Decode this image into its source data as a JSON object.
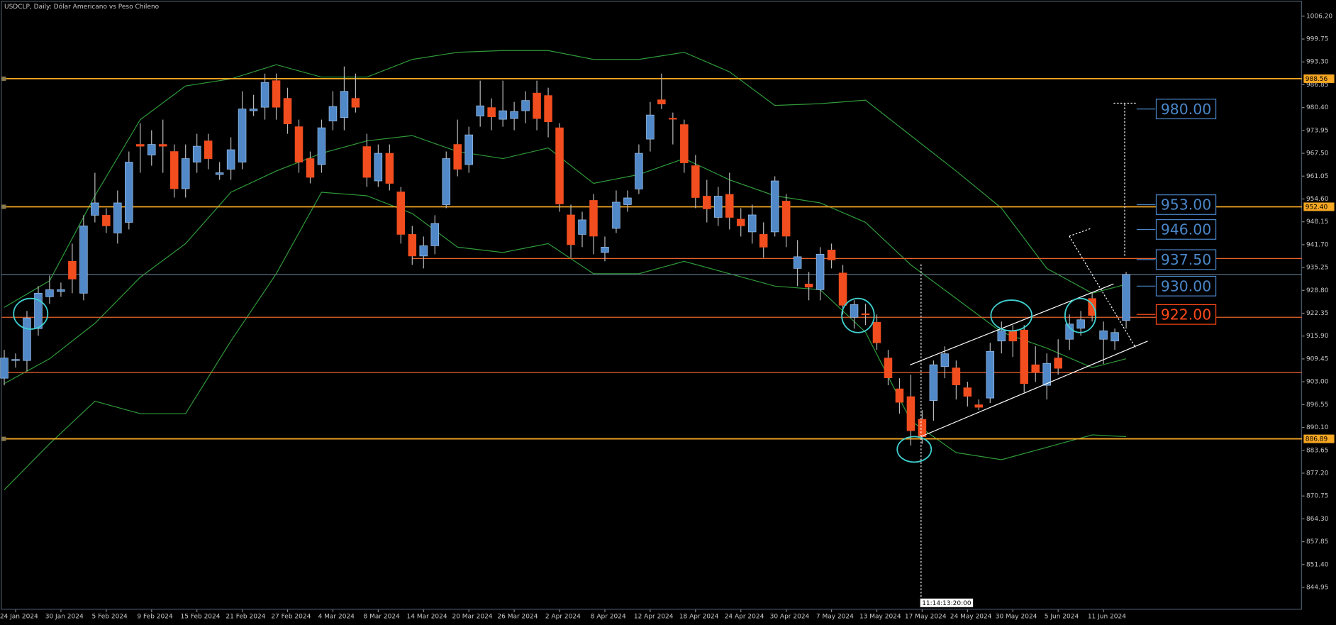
{
  "chart_data": {
    "type": "candlestick",
    "title": "USDCLP, Daily:  Dólar Americano vs Peso Chileno",
    "categories": [
      null,
      "24 Jan 2024",
      null,
      null,
      null,
      "30 Jan 2024",
      null,
      null,
      null,
      "5 Feb 2024",
      null,
      null,
      null,
      "9 Feb 2024",
      null,
      null,
      null,
      "15 Feb 2024",
      null,
      null,
      null,
      "21 Feb 2024",
      null,
      null,
      null,
      "27 Feb 2024",
      null,
      null,
      null,
      "4 Mar 2024",
      null,
      null,
      null,
      "8 Mar 2024",
      null,
      null,
      null,
      "14 Mar 2024",
      null,
      null,
      null,
      "20 Mar 2024",
      null,
      null,
      null,
      "26 Mar 2024",
      null,
      null,
      null,
      "2 Apr 2024",
      null,
      null,
      null,
      "8 Apr 2024",
      null,
      null,
      null,
      "12 Apr 2024",
      null,
      null,
      null,
      "18 Apr 2024",
      null,
      null,
      null,
      "24 Apr 2024",
      null,
      null,
      null,
      "30 Apr 2024",
      null,
      null,
      null,
      "7 May 2024",
      null,
      null,
      null,
      "13 May 2024",
      null,
      null,
      null,
      "17 May 2024",
      null,
      null,
      null,
      "24 May 2024",
      null,
      null,
      null,
      "30 May 2024",
      null,
      null,
      null,
      "5 Jun 2024",
      null,
      null,
      null,
      "11 Jun 2024",
      null,
      null
    ],
    "open": [
      904,
      909,
      909,
      918,
      927,
      928.5,
      937,
      928,
      950,
      950,
      945,
      948,
      970,
      967,
      970,
      968,
      957.5,
      965,
      971,
      961.5,
      963,
      965,
      979.5,
      980.5,
      988,
      983,
      975,
      966,
      964.3,
      976.6,
      977.6,
      983,
      969.4,
      959.7,
      967.5,
      956.6,
      944.6,
      938.5,
      941.4,
      953,
      970,
      964.3,
      978,
      980.4,
      977.1,
      977.3,
      979.5,
      984.5,
      983.8,
      974.7,
      950.1,
      944.6,
      954.2,
      939.5,
      946.3,
      953,
      957.4,
      971.5,
      982.6,
      977.4,
      975.6,
      964,
      955.4,
      949.4,
      955.9,
      948.9,
      945.3,
      944.6,
      945.3,
      954,
      935,
      930.6,
      929,
      940.2,
      933.7,
      921.2,
      922.2,
      919.8,
      909.7,
      901,
      898.8,
      892.4,
      897.7,
      907.3,
      906.9,
      901.3,
      896.5,
      898.4,
      914.5,
      917.4,
      917.6,
      907.8,
      902,
      909.7,
      915,
      918.1,
      926.5,
      915,
      914.5,
      920.3
    ],
    "high": [
      912,
      911,
      923,
      930,
      933,
      931,
      942,
      950,
      962,
      952,
      957,
      968,
      976,
      974,
      977,
      970,
      970,
      973,
      973,
      965,
      972,
      985,
      984,
      990,
      990,
      986,
      977,
      968,
      977,
      985,
      992,
      990,
      973,
      970,
      970,
      958,
      947,
      944,
      950,
      968,
      977,
      975,
      988,
      983,
      988,
      982,
      985,
      988,
      986,
      976,
      953,
      951,
      956,
      944,
      957,
      957,
      970,
      982,
      990,
      979,
      977,
      967,
      960,
      958,
      962,
      952,
      953,
      948,
      961,
      956,
      943,
      934,
      941,
      942,
      936,
      926,
      925,
      922,
      912,
      904,
      905,
      895,
      909,
      913,
      909,
      903,
      898,
      914,
      920,
      919,
      919,
      913,
      911,
      915,
      922,
      923,
      928,
      920,
      918,
      934
    ],
    "low": [
      902,
      907,
      906,
      916,
      925,
      927,
      928,
      926,
      948,
      945,
      942,
      946,
      962,
      964,
      962,
      955,
      955,
      962,
      963,
      960,
      960,
      963,
      978,
      977,
      977,
      973,
      962,
      959,
      962,
      974,
      974,
      979,
      958,
      958,
      957,
      942,
      936,
      935,
      939,
      952,
      961,
      962,
      975,
      974,
      975,
      974,
      976,
      974,
      972,
      951,
      938,
      941,
      939,
      937,
      945,
      951,
      956,
      968,
      980,
      970,
      962,
      952,
      948,
      947,
      946,
      944,
      942,
      938,
      944,
      941,
      930,
      926,
      926,
      935,
      922,
      918,
      919,
      912,
      902,
      894,
      885,
      885.5,
      892,
      904,
      898,
      896,
      895,
      897,
      911,
      910,
      900,
      903,
      898,
      905,
      912,
      916,
      920,
      908,
      912,
      918
    ],
    "close": [
      909.7,
      909.3,
      921,
      928,
      929,
      929,
      932,
      947,
      953.5,
      947,
      953.5,
      965,
      969.5,
      970,
      969.5,
      957.5,
      966,
      969.5,
      966,
      962,
      968.5,
      980,
      980,
      987.5,
      980.5,
      975.8,
      965,
      960.7,
      974.7,
      980.7,
      985,
      980.5,
      960.7,
      967.5,
      959,
      944.6,
      938.5,
      941.4,
      947.7,
      966,
      963,
      972.7,
      980.9,
      977.8,
      979.5,
      979.3,
      982.4,
      977.3,
      976.4,
      953.2,
      941.7,
      948.7,
      944.1,
      941,
      953.7,
      954.9,
      967.5,
      978.3,
      981.4,
      977.2,
      964.8,
      955,
      951.8,
      955.4,
      949.4,
      947,
      950.1,
      941,
      959.7,
      944.1,
      938.3,
      929.7,
      939,
      937.4,
      924.6,
      924.8,
      922,
      914,
      904.1,
      897.2,
      889.2,
      887.5,
      907.8,
      910.9,
      902.1,
      898.9,
      895.8,
      911.6,
      917.4,
      914.5,
      902.5,
      905.6,
      908.2,
      906.8,
      919.3,
      920.5,
      921.7,
      917.4,
      916.9,
      933.3
    ],
    "colors": {
      "up": "#5088c8",
      "down": "#f24d1e",
      "wick": "#b8b8b8",
      "band": "#2f9a3a",
      "level": "#f5a623",
      "line": "#e8622c",
      "price_line": "#5a6e80"
    },
    "ylim": [
      838.67,
      1010.77
    ],
    "yticks": [
      {
        "value": 1006.2,
        "label": "1006.20"
      },
      999.75,
      {
        "value": 993.3,
        "label": "993.30"
      },
      986.85,
      {
        "value": 980.4,
        "label": "980.40"
      },
      973.95,
      {
        "value": 967.5,
        "label": "967.50"
      },
      961.05,
      {
        "value": 954.6,
        "label": "954.60"
      },
      948.15,
      {
        "value": 941.7,
        "label": "941.70"
      },
      935.25,
      {
        "value": 928.8,
        "label": "928.80"
      },
      922.35,
      {
        "value": 915.9,
        "label": "915.90"
      },
      909.45,
      {
        "value": 903,
        "label": "903.00"
      },
      896.55,
      {
        "value": 890.1,
        "label": "890.10"
      },
      883.65,
      {
        "value": 877.2,
        "label": "877.20"
      },
      870.75,
      {
        "value": 864.3,
        "label": "864.30"
      },
      857.85,
      {
        "value": 851.4,
        "label": "851.40"
      },
      844.95
    ],
    "levels": [
      988.56,
      {
        "value": 952.4,
        "label": "952.40"
      },
      886.89
    ],
    "lines": [
      {
        "value": 937.8,
        "from": 36
      },
      {
        "value": 921.2,
        "from": 0
      },
      {
        "value": 905.6,
        "from": 0
      }
    ],
    "targets": [
      {
        "value": 980,
        "label": "980.00"
      },
      {
        "value": 953,
        "label": "953.00"
      },
      {
        "value": 946,
        "label": "946.00"
      },
      {
        "value": 937.5,
        "label": "937.50"
      },
      {
        "value": 930,
        "label": "930.00"
      },
      {
        "value": 922,
        "label": "922.00",
        "color": "#ff4a1a"
      }
    ],
    "target_color": "#4a86c8",
    "bands": {
      "x": [
        0,
        4,
        8,
        12,
        16,
        20,
        24,
        28,
        32,
        36,
        40,
        44,
        48,
        52,
        56,
        60,
        64,
        68,
        72,
        76,
        80,
        84,
        88,
        92,
        96,
        99
      ],
      "upper": [
        924,
        931.5,
        955.5,
        977,
        986.5,
        988.5,
        992.5,
        989,
        989,
        994,
        996,
        996.5,
        996.5,
        994,
        994,
        996,
        990.5,
        981,
        981.5,
        982.5,
        972.5,
        962.5,
        952,
        935,
        928,
        930.5
      ],
      "middle": [
        902.5,
        909.5,
        919.5,
        932.5,
        942,
        956.5,
        962.5,
        967.5,
        971,
        972.5,
        968,
        966,
        969,
        959,
        961.5,
        966,
        960,
        955.5,
        953.5,
        948,
        936,
        926.5,
        917,
        912.5,
        907,
        909.5
      ],
      "lower": [
        872.5,
        885.5,
        897.5,
        894,
        894,
        914.5,
        933.5,
        956.5,
        955.5,
        950.5,
        941,
        939.5,
        942,
        933.5,
        933.5,
        937,
        933.5,
        930,
        929,
        917,
        892,
        883,
        881,
        884.5,
        888,
        887.5
      ]
    },
    "cursor_label": "11:14:13:20:00"
  }
}
